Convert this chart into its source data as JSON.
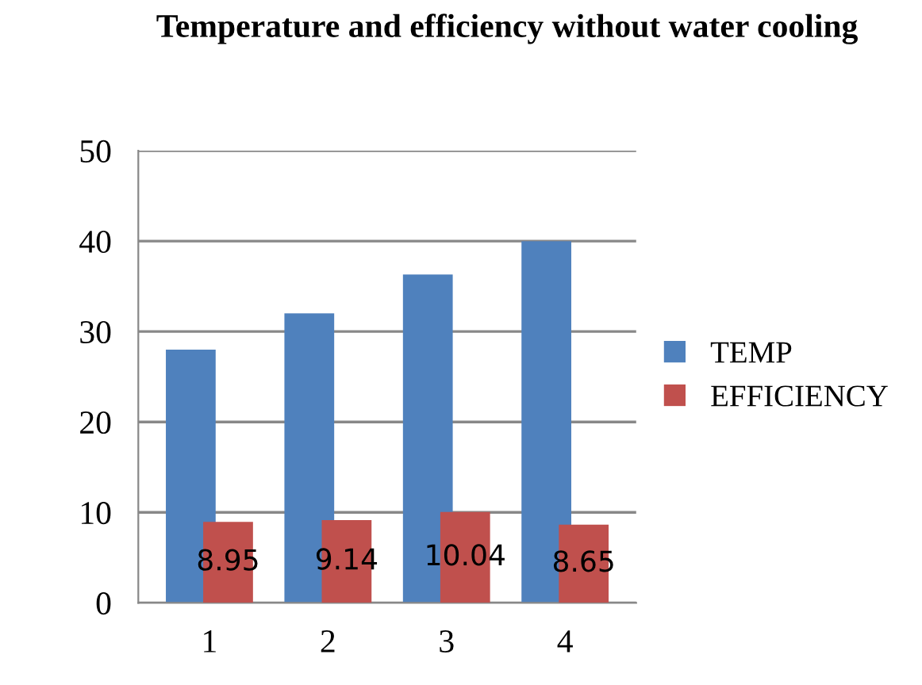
{
  "chart_data": {
    "type": "bar",
    "title": "Temperature and efficiency without water cooling",
    "categories": [
      "1",
      "2",
      "3",
      "4"
    ],
    "series": [
      {
        "name": "TEMP",
        "color": "#4f81bd",
        "values": [
          28,
          32,
          36.3,
          40
        ]
      },
      {
        "name": "EFFICIENCY",
        "color": "#c0504d",
        "values": [
          8.95,
          9.14,
          10.04,
          8.65
        ],
        "value_labels": [
          "8.95",
          "9.14",
          "10.04",
          "8.65"
        ]
      }
    ],
    "ylim": [
      0,
      50
    ],
    "yticks": [
      0,
      10,
      20,
      30,
      40,
      50
    ],
    "grid": "y",
    "legend": "right"
  }
}
